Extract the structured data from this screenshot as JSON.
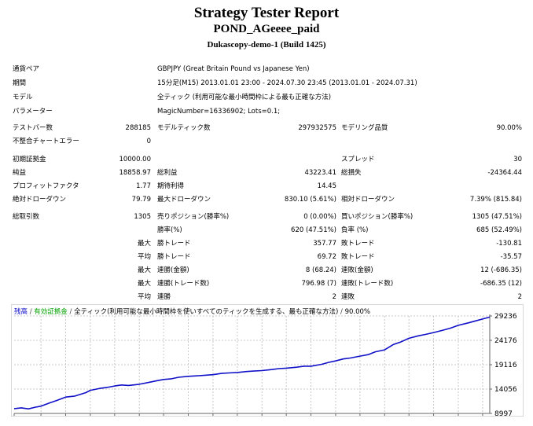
{
  "report": {
    "title": "Strategy Tester Report",
    "subtitle": "POND_AGeeee_paid",
    "server": "Dukascopy-demo-1 (Build 1425)"
  },
  "info": [
    {
      "label": "通貨ペア",
      "value": "GBPJPY (Great Britain Pound vs Japanese Yen)"
    },
    {
      "label": "期間",
      "value": "15分足(M15) 2013.01.01 23:00 - 2024.07.30 23:45 (2013.01.01 - 2024.07.31)"
    },
    {
      "label": "モデル",
      "value": "全ティック (利用可能な最小時間枠による最も正確な方法)"
    },
    {
      "label": "パラメーター",
      "value": "MagicNumber=16336902; Lots=0.1;"
    }
  ],
  "stats": {
    "bars_label": "テストバー数",
    "bars": "288185",
    "ticks_label": "モデルティック数",
    "ticks": "297932575",
    "quality_label": "モデリング品質",
    "quality": "90.00%",
    "mismatch_label": "不整合チャートエラー",
    "mismatch": "0",
    "deposit_label": "初期証拠金",
    "deposit": "10000.00",
    "spread_label": "スプレッド",
    "spread": "30",
    "net_label": "純益",
    "net": "18858.97",
    "gross_profit_label": "総利益",
    "gross_profit": "43223.41",
    "gross_loss_label": "総損失",
    "gross_loss": "-24364.44",
    "pf_label": "プロフィットファクタ",
    "pf": "1.77",
    "expected_label": "期待利得",
    "expected": "14.45",
    "abs_dd_label": "絶対ドローダウン",
    "abs_dd": "79.79",
    "max_dd_label": "最大ドローダウン",
    "max_dd": "830.10 (5.61%)",
    "rel_dd_label": "相対ドローダウン",
    "rel_dd": "7.39% (815.84)",
    "trades_label": "総取引数",
    "trades": "1305",
    "short_label": "売りポジション(勝率%)",
    "short": "0 (0.00%)",
    "long_label": "買いポジション(勝率%)",
    "long": "1305 (47.51%)",
    "win_label": "勝率(%)",
    "win": "620 (47.51%)",
    "loss_label": "負率 (%)",
    "loss": "685 (52.49%)",
    "max_word": "最大",
    "avg_word": "平均",
    "max_win_label": "勝トレード",
    "max_win": "357.77",
    "max_loss_label": "敗トレード",
    "max_loss": "-130.81",
    "avg_win_label": "勝トレード",
    "avg_win": "69.72",
    "avg_loss_label": "敗トレード",
    "avg_loss": "-35.57",
    "cw_amt_label": "連勝(金額)",
    "cw_amt": "8 (68.24)",
    "cl_amt_label": "連敗(金額)",
    "cl_amt": "12 (-686.35)",
    "cw_cnt_label": "連勝(トレード数)",
    "cw_cnt": "796.98 (7)",
    "cl_cnt_label": "連敗(トレード数)",
    "cl_cnt": "-686.35 (12)",
    "avg_cw_label": "連勝",
    "avg_cw": "2",
    "avg_cl_label": "連敗",
    "avg_cl": "2"
  },
  "legend": {
    "balance": "残高",
    "equity": "有効証拠金",
    "text": "全ティック(利用可能な最小時間枠を使いすべてのティックを生成する、最も正確な方法)",
    "quality": "90.00%"
  },
  "colors": {
    "balance": "#1010c8",
    "equity": "#00a000",
    "grid": "#c8c8c8"
  },
  "chart_data": {
    "type": "line",
    "xlabel": "",
    "ylabel": "",
    "x_ticks": [
      "0",
      "75",
      "144",
      "213",
      "281",
      "350",
      "418",
      "487",
      "556",
      "624",
      "693",
      "761",
      "830",
      "899",
      "967",
      "1036",
      "1104",
      "1173",
      "1242",
      "1310"
    ],
    "y_ticks": [
      "29236",
      "24176",
      "19116",
      "14056",
      "8997"
    ],
    "xlim": [
      0,
      1330
    ],
    "ylim": [
      8997,
      29236
    ],
    "grid": true,
    "series": [
      {
        "name": "残高",
        "x": [
          0,
          20,
          40,
          60,
          75,
          100,
          120,
          144,
          170,
          200,
          213,
          240,
          260,
          281,
          300,
          320,
          350,
          380,
          400,
          418,
          440,
          460,
          487,
          510,
          530,
          556,
          580,
          600,
          624,
          650,
          670,
          693,
          720,
          740,
          761,
          790,
          810,
          830,
          860,
          880,
          899,
          920,
          940,
          967,
          990,
          1010,
          1036,
          1060,
          1080,
          1104,
          1130,
          1150,
          1173,
          1200,
          1220,
          1242,
          1270,
          1290,
          1310,
          1330
        ],
        "y": [
          10000,
          10150,
          9950,
          10300,
          10500,
          11200,
          11700,
          12400,
          12600,
          13300,
          13800,
          14200,
          14400,
          14700,
          14900,
          14800,
          15050,
          15500,
          15800,
          16050,
          16200,
          16500,
          16700,
          16800,
          16900,
          17050,
          17300,
          17400,
          17500,
          17700,
          17800,
          17900,
          18100,
          18300,
          18400,
          18600,
          18800,
          18800,
          19200,
          19600,
          19900,
          20300,
          20500,
          20900,
          21200,
          21800,
          22200,
          23300,
          23800,
          24600,
          25100,
          25400,
          25800,
          26300,
          26700,
          27300,
          27800,
          28200,
          28600,
          29000
        ]
      }
    ]
  }
}
